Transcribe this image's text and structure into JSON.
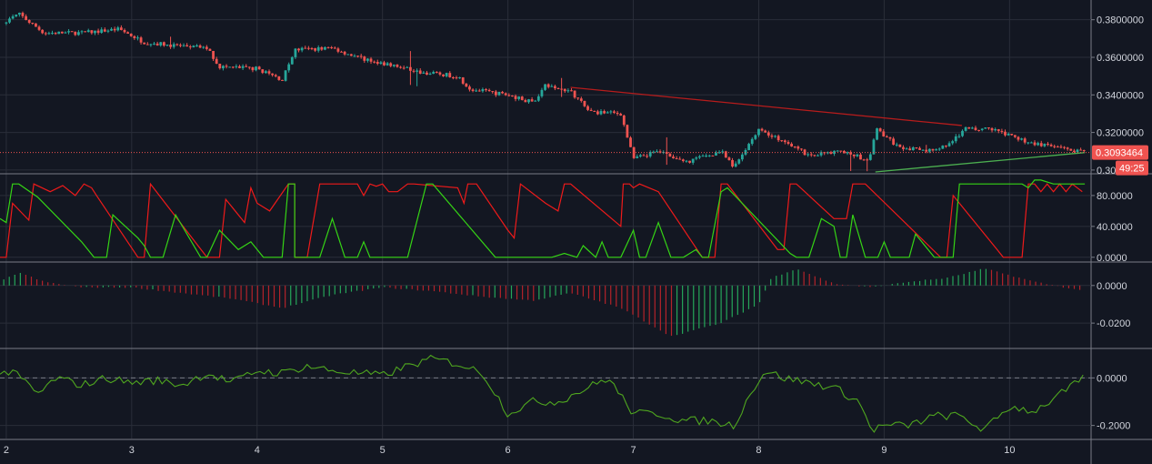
{
  "chart_data": {
    "type": "candlestick",
    "colors": {
      "background": "#131722",
      "grid": "#2a2e39",
      "axis_text": "#d1d4dc",
      "up": "#26a69a",
      "down": "#ef5350",
      "price_line": "#ef5350",
      "trend_upper": "#b71c1c",
      "trend_lower": "#4caf50",
      "stoch_k": "#ef1a1a",
      "stoch_d": "#35d415",
      "hist_pos": "#26a65a",
      "hist_neg": "#b4232a",
      "oscillator": "#4fa61f",
      "separator": "#787b86"
    },
    "x_axis": {
      "domain": [
        1.95,
        10.65
      ],
      "ticks": [
        {
          "x": 2,
          "label": "2"
        },
        {
          "x": 3,
          "label": "3"
        },
        {
          "x": 4,
          "label": "4"
        },
        {
          "x": 5,
          "label": "5"
        },
        {
          "x": 6,
          "label": "6"
        },
        {
          "x": 7,
          "label": "7"
        },
        {
          "x": 8,
          "label": "8"
        },
        {
          "x": 9,
          "label": "9"
        },
        {
          "x": 10,
          "label": "10"
        }
      ]
    },
    "price_pane": {
      "ylim": [
        0.2985,
        0.3905
      ],
      "ticks": [
        {
          "v": 0.38,
          "label": "0.3800000"
        },
        {
          "v": 0.36,
          "label": "0.3600000"
        },
        {
          "v": 0.34,
          "label": "0.3400000"
        },
        {
          "v": 0.32,
          "label": "0.3200000"
        },
        {
          "v": 0.3,
          "label": "0.30"
        }
      ],
      "last_price": 0.3093464,
      "last_price_label": "0.3093464",
      "countdown_label": "49:25",
      "anchors": [
        [
          1.95,
          0.378
        ],
        [
          2.1,
          0.383
        ],
        [
          2.3,
          0.373
        ],
        [
          2.6,
          0.373
        ],
        [
          2.9,
          0.375
        ],
        [
          3.1,
          0.368
        ],
        [
          3.4,
          0.366
        ],
        [
          3.6,
          0.365
        ],
        [
          3.7,
          0.355
        ],
        [
          4.0,
          0.354
        ],
        [
          4.2,
          0.348
        ],
        [
          4.3,
          0.364
        ],
        [
          4.6,
          0.365
        ],
        [
          4.8,
          0.36
        ],
        [
          5.0,
          0.357
        ],
        [
          5.3,
          0.352
        ],
        [
          5.6,
          0.35
        ],
        [
          5.7,
          0.343
        ],
        [
          6.0,
          0.34
        ],
        [
          6.2,
          0.336
        ],
        [
          6.3,
          0.345
        ],
        [
          6.5,
          0.342
        ],
        [
          6.65,
          0.331
        ],
        [
          6.9,
          0.33
        ],
        [
          7.0,
          0.306
        ],
        [
          7.2,
          0.31
        ],
        [
          7.4,
          0.304
        ],
        [
          7.7,
          0.31
        ],
        [
          7.8,
          0.301
        ],
        [
          7.9,
          0.312
        ],
        [
          8.0,
          0.322
        ],
        [
          8.2,
          0.315
        ],
        [
          8.4,
          0.308
        ],
        [
          8.7,
          0.31
        ],
        [
          8.88,
          0.304
        ],
        [
          8.93,
          0.322
        ],
        [
          9.1,
          0.313
        ],
        [
          9.3,
          0.31
        ],
        [
          9.5,
          0.313
        ],
        [
          9.65,
          0.322
        ],
        [
          9.85,
          0.322
        ],
        [
          10.0,
          0.318
        ],
        [
          10.2,
          0.314
        ],
        [
          10.45,
          0.311
        ],
        [
          10.6,
          0.3093
        ]
      ],
      "trendlines": [
        {
          "name": "upper",
          "from": [
            6.5,
            0.344
          ],
          "to": [
            9.62,
            0.3237
          ]
        },
        {
          "name": "lower",
          "from": [
            8.93,
            0.299
          ],
          "to": [
            10.6,
            0.3093
          ]
        }
      ]
    },
    "stoch_pane": {
      "ylim": [
        -5,
        107
      ],
      "ticks": [
        {
          "v": 80,
          "label": "80.0000"
        },
        {
          "v": 40,
          "label": "40.0000"
        },
        {
          "v": 0,
          "label": "0.0000"
        }
      ],
      "series": [
        {
          "key": "k",
          "points": [
            [
              1.95,
              0
            ],
            [
              2.0,
              0
            ],
            [
              2.05,
              70
            ],
            [
              2.18,
              48
            ],
            [
              2.22,
              95
            ],
            [
              2.35,
              85
            ],
            [
              2.45,
              93
            ],
            [
              2.55,
              80
            ],
            [
              2.62,
              95
            ],
            [
              2.68,
              90
            ],
            [
              2.72,
              80
            ],
            [
              3.05,
              0
            ],
            [
              3.1,
              0
            ],
            [
              3.15,
              95
            ],
            [
              3.6,
              0
            ],
            [
              3.7,
              0
            ],
            [
              3.75,
              75
            ],
            [
              3.9,
              45
            ],
            [
              3.95,
              90
            ],
            [
              4.0,
              70
            ],
            [
              4.1,
              60
            ],
            [
              4.25,
              95
            ],
            [
              4.3,
              95
            ],
            [
              4.3,
              0
            ],
            [
              4.35,
              0
            ],
            [
              4.4,
              0
            ],
            [
              4.5,
              95
            ],
            [
              4.8,
              95
            ],
            [
              4.85,
              80
            ],
            [
              4.9,
              95
            ],
            [
              4.95,
              92
            ],
            [
              5.0,
              95
            ],
            [
              5.05,
              85
            ],
            [
              5.12,
              85
            ],
            [
              5.2,
              95
            ],
            [
              5.25,
              95
            ],
            [
              5.6,
              90
            ],
            [
              5.65,
              70
            ],
            [
              5.68,
              95
            ],
            [
              5.75,
              95
            ],
            [
              6.0,
              35
            ],
            [
              6.05,
              25
            ],
            [
              6.1,
              95
            ],
            [
              6.3,
              70
            ],
            [
              6.4,
              60
            ],
            [
              6.45,
              95
            ],
            [
              6.5,
              95
            ],
            [
              6.9,
              40
            ],
            [
              6.92,
              95
            ],
            [
              6.97,
              95
            ],
            [
              7.0,
              90
            ],
            [
              7.05,
              95
            ],
            [
              7.2,
              85
            ],
            [
              7.55,
              0
            ],
            [
              7.65,
              0
            ],
            [
              7.7,
              95
            ],
            [
              7.75,
              95
            ],
            [
              8.15,
              10
            ],
            [
              8.2,
              10
            ],
            [
              8.25,
              95
            ],
            [
              8.3,
              95
            ],
            [
              8.6,
              50
            ],
            [
              8.7,
              50
            ],
            [
              8.75,
              95
            ],
            [
              8.85,
              95
            ],
            [
              9.45,
              0
            ],
            [
              9.5,
              0
            ],
            [
              9.55,
              80
            ],
            [
              9.9,
              10
            ],
            [
              9.95,
              0
            ],
            [
              10.0,
              0
            ],
            [
              10.1,
              0
            ],
            [
              10.15,
              95
            ],
            [
              10.2,
              95
            ],
            [
              10.25,
              85
            ],
            [
              10.3,
              95
            ],
            [
              10.35,
              85
            ],
            [
              10.4,
              95
            ],
            [
              10.45,
              85
            ],
            [
              10.5,
              95
            ],
            [
              10.58,
              85
            ]
          ]
        },
        {
          "key": "d",
          "points": [
            [
              1.95,
              50
            ],
            [
              2.0,
              45
            ],
            [
              2.05,
              95
            ],
            [
              2.1,
              95
            ],
            [
              2.25,
              78
            ],
            [
              2.6,
              20
            ],
            [
              2.7,
              0
            ],
            [
              2.8,
              0
            ],
            [
              2.85,
              55
            ],
            [
              3.05,
              25
            ],
            [
              3.1,
              15
            ],
            [
              3.15,
              0
            ],
            [
              3.25,
              0
            ],
            [
              3.35,
              55
            ],
            [
              3.55,
              0
            ],
            [
              3.6,
              0
            ],
            [
              3.7,
              35
            ],
            [
              3.85,
              10
            ],
            [
              3.95,
              20
            ],
            [
              4.05,
              0
            ],
            [
              4.2,
              0
            ],
            [
              4.25,
              95
            ],
            [
              4.3,
              95
            ],
            [
              4.3,
              0
            ],
            [
              4.5,
              0
            ],
            [
              4.6,
              50
            ],
            [
              4.7,
              0
            ],
            [
              4.8,
              0
            ],
            [
              4.85,
              20
            ],
            [
              4.9,
              0
            ],
            [
              5.0,
              0
            ],
            [
              5.2,
              0
            ],
            [
              5.35,
              95
            ],
            [
              5.4,
              95
            ],
            [
              5.9,
              0
            ],
            [
              6.35,
              0
            ],
            [
              6.45,
              5
            ],
            [
              6.55,
              0
            ],
            [
              6.6,
              15
            ],
            [
              6.7,
              0
            ],
            [
              6.75,
              20
            ],
            [
              6.8,
              0
            ],
            [
              6.9,
              0
            ],
            [
              7.0,
              35
            ],
            [
              7.05,
              0
            ],
            [
              7.1,
              0
            ],
            [
              7.2,
              45
            ],
            [
              7.3,
              0
            ],
            [
              7.4,
              0
            ],
            [
              7.5,
              10
            ],
            [
              7.55,
              0
            ],
            [
              7.6,
              0
            ],
            [
              7.7,
              85
            ],
            [
              7.75,
              90
            ],
            [
              8.25,
              5
            ],
            [
              8.3,
              0
            ],
            [
              8.4,
              0
            ],
            [
              8.5,
              50
            ],
            [
              8.6,
              40
            ],
            [
              8.65,
              0
            ],
            [
              8.7,
              0
            ],
            [
              8.75,
              55
            ],
            [
              8.85,
              0
            ],
            [
              8.95,
              0
            ],
            [
              9.0,
              20
            ],
            [
              9.05,
              0
            ],
            [
              9.2,
              0
            ],
            [
              9.25,
              30
            ],
            [
              9.35,
              10
            ],
            [
              9.4,
              0
            ],
            [
              9.55,
              0
            ],
            [
              9.6,
              95
            ],
            [
              9.75,
              95
            ],
            [
              10.1,
              95
            ],
            [
              10.15,
              90
            ],
            [
              10.2,
              100
            ],
            [
              10.25,
              100
            ],
            [
              10.35,
              95
            ],
            [
              10.4,
              95
            ],
            [
              10.6,
              95
            ]
          ]
        }
      ]
    },
    "hist_pane": {
      "ylim": [
        -0.033,
        0.012
      ],
      "ticks": [
        {
          "v": 0,
          "label": "0.0000"
        },
        {
          "v": -0.02,
          "label": "-0.0200"
        }
      ],
      "anchors": [
        [
          1.95,
          0.002
        ],
        [
          2.1,
          0.007
        ],
        [
          2.3,
          0.002
        ],
        [
          2.6,
          -0.001
        ],
        [
          3.0,
          -0.001
        ],
        [
          3.4,
          -0.004
        ],
        [
          3.8,
          -0.007
        ],
        [
          4.2,
          -0.012
        ],
        [
          4.6,
          -0.005
        ],
        [
          5.0,
          -0.001
        ],
        [
          5.4,
          -0.003
        ],
        [
          5.8,
          -0.006
        ],
        [
          6.2,
          -0.008
        ],
        [
          6.5,
          -0.004
        ],
        [
          6.9,
          -0.012
        ],
        [
          7.3,
          -0.027
        ],
        [
          7.7,
          -0.02
        ],
        [
          8.0,
          -0.01
        ],
        [
          8.1,
          0.004
        ],
        [
          8.3,
          0.009
        ],
        [
          8.6,
          0.001
        ],
        [
          8.9,
          -0.001
        ],
        [
          9.2,
          0.002
        ],
        [
          9.5,
          0.004
        ],
        [
          9.8,
          0.009
        ],
        [
          10.2,
          0.002
        ],
        [
          10.6,
          -0.003
        ]
      ]
    },
    "osc_pane": {
      "ylim": [
        -0.255,
        0.12
      ],
      "ticks": [
        {
          "v": 0,
          "label": "0.0000"
        },
        {
          "v": -0.2,
          "label": "-0.2000"
        }
      ],
      "anchors": [
        [
          1.95,
          0.03
        ],
        [
          2.1,
          0.01
        ],
        [
          2.25,
          -0.07
        ],
        [
          2.4,
          0.0
        ],
        [
          2.6,
          -0.03
        ],
        [
          2.8,
          0.0
        ],
        [
          3.0,
          -0.02
        ],
        [
          3.2,
          -0.01
        ],
        [
          3.4,
          -0.03
        ],
        [
          3.6,
          0.02
        ],
        [
          3.8,
          -0.02
        ],
        [
          4.0,
          0.03
        ],
        [
          4.2,
          0.02
        ],
        [
          4.4,
          0.05
        ],
        [
          4.6,
          0.03
        ],
        [
          4.8,
          0.02
        ],
        [
          5.0,
          0.01
        ],
        [
          5.2,
          0.05
        ],
        [
          5.4,
          0.08
        ],
        [
          5.6,
          0.06
        ],
        [
          5.8,
          0.02
        ],
        [
          6.0,
          -0.15
        ],
        [
          6.2,
          -0.1
        ],
        [
          6.4,
          -0.1
        ],
        [
          6.6,
          -0.05
        ],
        [
          6.8,
          0.0
        ],
        [
          7.0,
          -0.15
        ],
        [
          7.2,
          -0.15
        ],
        [
          7.4,
          -0.18
        ],
        [
          7.6,
          -0.18
        ],
        [
          7.8,
          -0.2
        ],
        [
          7.95,
          -0.05
        ],
        [
          8.05,
          0.03
        ],
        [
          8.2,
          0.0
        ],
        [
          8.4,
          -0.02
        ],
        [
          8.6,
          -0.04
        ],
        [
          8.8,
          -0.1
        ],
        [
          8.9,
          -0.22
        ],
        [
          9.0,
          -0.2
        ],
        [
          9.2,
          -0.2
        ],
        [
          9.4,
          -0.16
        ],
        [
          9.6,
          -0.16
        ],
        [
          9.8,
          -0.22
        ],
        [
          10.0,
          -0.12
        ],
        [
          10.2,
          -0.14
        ],
        [
          10.4,
          -0.07
        ],
        [
          10.6,
          0.0
        ]
      ]
    }
  }
}
